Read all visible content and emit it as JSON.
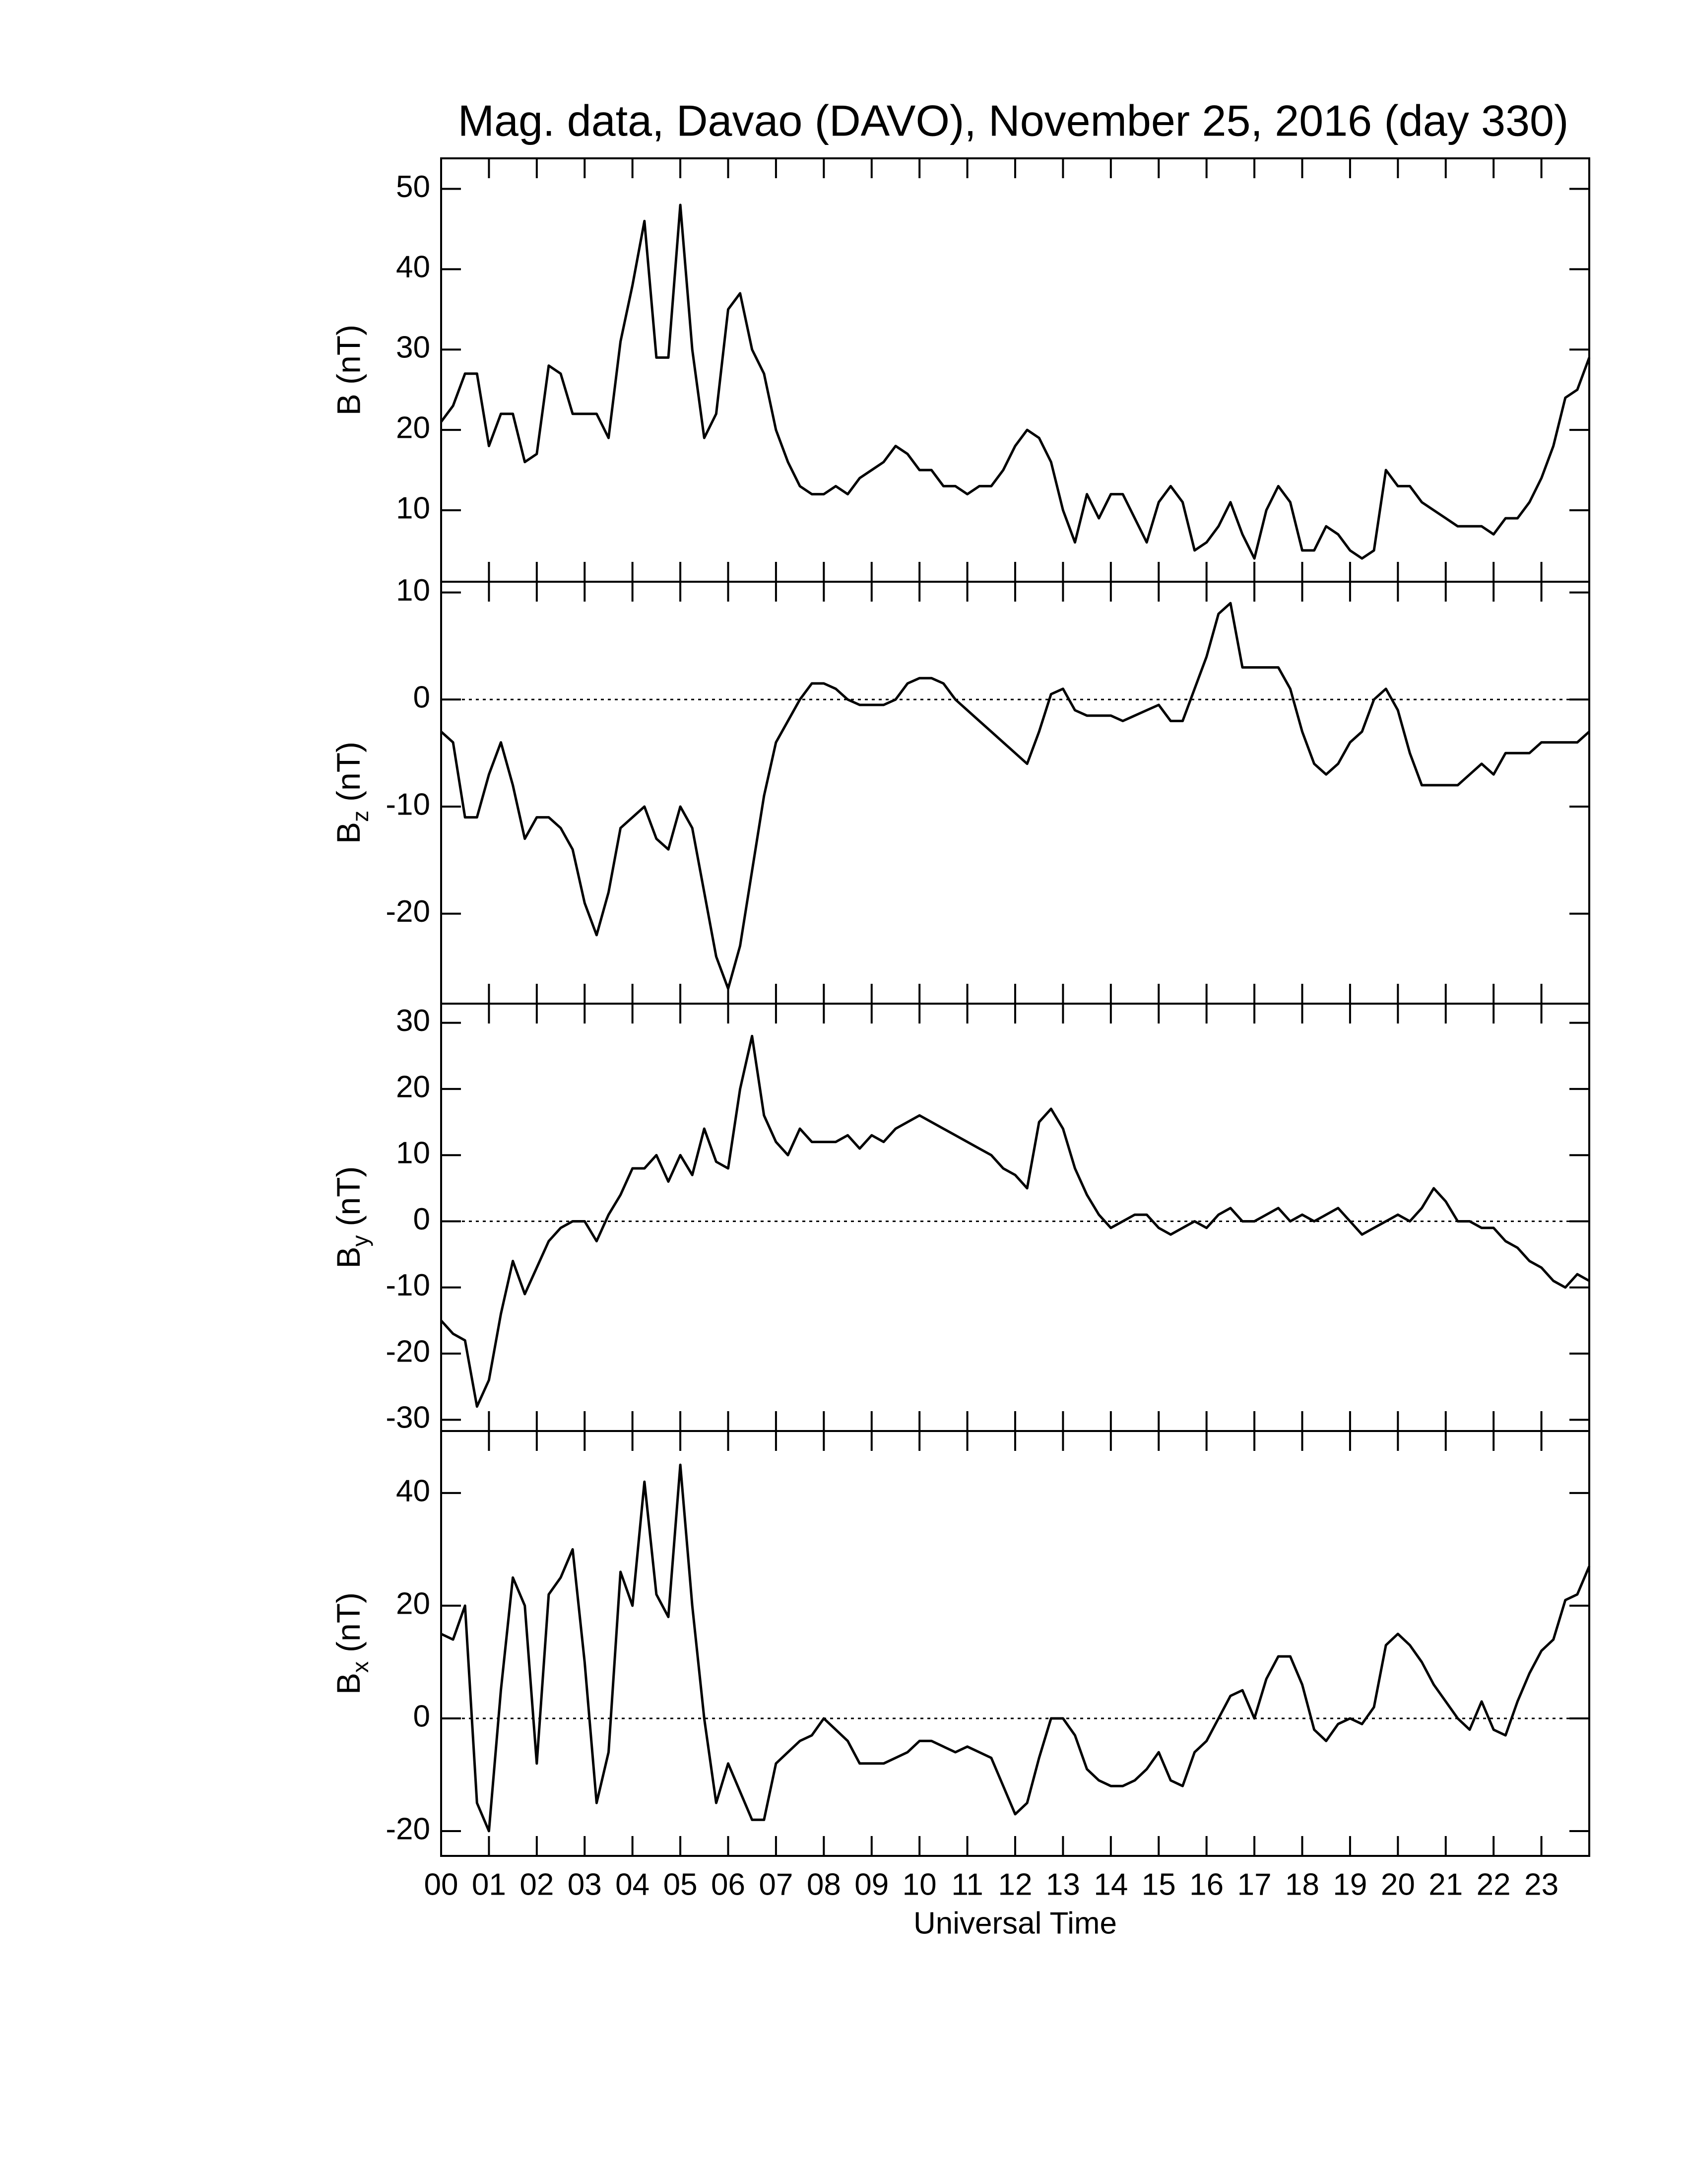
{
  "chart_data": [
    {
      "type": "line",
      "title": "Mag. data, Davao (DAVO), November 25, 2016 (day 330)",
      "y_label": "B (nT)",
      "color": "#000000",
      "xlim": [
        0,
        24
      ],
      "ylim": [
        1.1,
        53.8
      ],
      "yticks": [
        10,
        20,
        30,
        40,
        50
      ],
      "x": [
        0,
        0.25,
        0.5,
        0.75,
        1,
        1.25,
        1.5,
        1.75,
        2,
        2.25,
        2.5,
        2.75,
        3,
        3.25,
        3.5,
        3.75,
        4,
        4.25,
        4.5,
        4.75,
        5,
        5.25,
        5.5,
        5.75,
        6,
        6.25,
        6.5,
        6.75,
        7,
        7.25,
        7.5,
        7.75,
        8,
        8.25,
        8.5,
        8.75,
        9,
        9.25,
        9.5,
        9.75,
        10,
        10.25,
        10.5,
        10.75,
        11,
        11.25,
        11.5,
        11.75,
        12,
        12.25,
        12.5,
        12.75,
        13,
        13.25,
        13.5,
        13.75,
        14,
        14.25,
        14.5,
        14.75,
        15,
        15.25,
        15.5,
        15.75,
        16,
        16.25,
        16.5,
        16.75,
        17,
        17.25,
        17.5,
        17.75,
        18,
        18.25,
        18.5,
        18.75,
        19,
        19.25,
        19.5,
        19.75,
        20,
        20.25,
        20.5,
        20.75,
        21,
        21.25,
        21.5,
        21.75,
        22,
        22.25,
        22.5,
        22.75,
        23,
        23.25,
        23.5,
        23.75,
        24
      ],
      "values": [
        21,
        23,
        27,
        27,
        18,
        22,
        22,
        16,
        17,
        28,
        27,
        22,
        22,
        22,
        19,
        31,
        38,
        46,
        29,
        29,
        48,
        30,
        19,
        22,
        35,
        37,
        30,
        27,
        20,
        16,
        13,
        12,
        12,
        13,
        12,
        14,
        15,
        16,
        18,
        17,
        15,
        15,
        13,
        13,
        12,
        13,
        13,
        15,
        18,
        20,
        19,
        16,
        10,
        6,
        12,
        9,
        12,
        12,
        9,
        6,
        11,
        13,
        11,
        5,
        6,
        8,
        11,
        7,
        4,
        10,
        13,
        11,
        5,
        5,
        8,
        7,
        5,
        4,
        5,
        15,
        13,
        13,
        11,
        10,
        9,
        8,
        8,
        8,
        7,
        9,
        9,
        11,
        14,
        18,
        24,
        25,
        29
      ]
    },
    {
      "type": "line",
      "y_label": "B",
      "y_label_subscript": "z",
      "y_label_unit": "(nT)",
      "color": "#000000",
      "reference_line": 0,
      "xlim": [
        0,
        24
      ],
      "ylim": [
        -28.4,
        11
      ],
      "yticks": [
        -20,
        -10,
        0,
        10
      ],
      "x": [
        0,
        0.25,
        0.5,
        0.75,
        1,
        1.25,
        1.5,
        1.75,
        2,
        2.25,
        2.5,
        2.75,
        3,
        3.25,
        3.5,
        3.75,
        4,
        4.25,
        4.5,
        4.75,
        5,
        5.25,
        5.5,
        5.75,
        6,
        6.25,
        6.5,
        6.75,
        7,
        7.25,
        7.5,
        7.75,
        8,
        8.25,
        8.5,
        8.75,
        9,
        9.25,
        9.5,
        9.75,
        10,
        10.25,
        10.5,
        10.75,
        11,
        11.25,
        11.5,
        11.75,
        12,
        12.25,
        12.5,
        12.75,
        13,
        13.25,
        13.5,
        13.75,
        14,
        14.25,
        14.5,
        14.75,
        15,
        15.25,
        15.5,
        15.75,
        16,
        16.25,
        16.5,
        16.75,
        17,
        17.25,
        17.5,
        17.75,
        18,
        18.25,
        18.5,
        18.75,
        19,
        19.25,
        19.5,
        19.75,
        20,
        20.25,
        20.5,
        20.75,
        21,
        21.25,
        21.5,
        21.75,
        22,
        22.25,
        22.5,
        22.75,
        23,
        23.25,
        23.5,
        23.75,
        24
      ],
      "values": [
        -3,
        -4,
        -11,
        -11,
        -7,
        -4,
        -8,
        -13,
        -11,
        -11,
        -12,
        -14,
        -19,
        -22,
        -18,
        -12,
        -11,
        -10,
        -13,
        -14,
        -10,
        -12,
        -18,
        -24,
        -27,
        -23,
        -16,
        -9,
        -4,
        -2,
        0,
        1.5,
        1.5,
        1,
        0,
        -0.5,
        -0.5,
        -0.5,
        0,
        1.5,
        2,
        2,
        1.5,
        0,
        -1,
        -2,
        -3,
        -4,
        -5,
        -6,
        -3,
        0.5,
        1,
        -1,
        -1.5,
        -1.5,
        -1.5,
        -2,
        -1.5,
        -1,
        -0.5,
        -2,
        -2,
        1,
        4,
        8,
        9,
        3,
        3,
        3,
        3,
        1,
        -3,
        -6,
        -7,
        -6,
        -4,
        -3,
        0,
        1,
        -1,
        -5,
        -8,
        -8,
        -8,
        -8,
        -7,
        -6,
        -7,
        -5,
        -5,
        -5,
        -4,
        -4,
        -4,
        -4,
        -3
      ]
    },
    {
      "type": "line",
      "y_label": "B",
      "y_label_subscript": "y",
      "y_label_unit": "(nT)",
      "color": "#000000",
      "reference_line": 0,
      "xlim": [
        0,
        24
      ],
      "ylim": [
        -31.7,
        32.9
      ],
      "yticks": [
        -30,
        -20,
        -10,
        0,
        10,
        20,
        30
      ],
      "x": [
        0,
        0.25,
        0.5,
        0.75,
        1,
        1.25,
        1.5,
        1.75,
        2,
        2.25,
        2.5,
        2.75,
        3,
        3.25,
        3.5,
        3.75,
        4,
        4.25,
        4.5,
        4.75,
        5,
        5.25,
        5.5,
        5.75,
        6,
        6.25,
        6.5,
        6.75,
        7,
        7.25,
        7.5,
        7.75,
        8,
        8.25,
        8.5,
        8.75,
        9,
        9.25,
        9.5,
        9.75,
        10,
        10.25,
        10.5,
        10.75,
        11,
        11.25,
        11.5,
        11.75,
        12,
        12.25,
        12.5,
        12.75,
        13,
        13.25,
        13.5,
        13.75,
        14,
        14.25,
        14.5,
        14.75,
        15,
        15.25,
        15.5,
        15.75,
        16,
        16.25,
        16.5,
        16.75,
        17,
        17.25,
        17.5,
        17.75,
        18,
        18.25,
        18.5,
        18.75,
        19,
        19.25,
        19.5,
        19.75,
        20,
        20.25,
        20.5,
        20.75,
        21,
        21.25,
        21.5,
        21.75,
        22,
        22.25,
        22.5,
        22.75,
        23,
        23.25,
        23.5,
        23.75,
        24
      ],
      "values": [
        -15,
        -17,
        -18,
        -28,
        -24,
        -14,
        -6,
        -11,
        -7,
        -3,
        -1,
        0,
        0,
        -3,
        1,
        4,
        8,
        8,
        10,
        6,
        10,
        7,
        14,
        9,
        8,
        20,
        28,
        16,
        12,
        10,
        14,
        12,
        12,
        12,
        13,
        11,
        13,
        12,
        14,
        15,
        16,
        15,
        14,
        13,
        12,
        11,
        10,
        8,
        7,
        5,
        15,
        17,
        14,
        8,
        4,
        1,
        -1,
        0,
        1,
        1,
        -1,
        -2,
        -1,
        0,
        -1,
        1,
        2,
        0,
        0,
        1,
        2,
        0,
        1,
        0,
        1,
        2,
        0,
        -2,
        -1,
        0,
        1,
        0,
        2,
        5,
        3,
        0,
        0,
        -1,
        -1,
        -3,
        -4,
        -6,
        -7,
        -9,
        -10,
        -8,
        -9
      ]
    },
    {
      "type": "line",
      "y_label": "B",
      "y_label_subscript": "x",
      "y_label_unit": "(nT)",
      "x_label": "Universal Time",
      "color": "#000000",
      "reference_line": 0,
      "xlim": [
        0,
        24
      ],
      "ylim": [
        -24.4,
        51
      ],
      "yticks": [
        -20,
        0,
        20,
        40
      ],
      "xticks": [
        {
          "value": 0,
          "label": "00"
        },
        {
          "value": 1,
          "label": "01"
        },
        {
          "value": 2,
          "label": "02"
        },
        {
          "value": 3,
          "label": "03"
        },
        {
          "value": 4,
          "label": "04"
        },
        {
          "value": 5,
          "label": "05"
        },
        {
          "value": 6,
          "label": "06"
        },
        {
          "value": 7,
          "label": "07"
        },
        {
          "value": 8,
          "label": "08"
        },
        {
          "value": 9,
          "label": "09"
        },
        10,
        11,
        12,
        13,
        14,
        15,
        16,
        17,
        18,
        19,
        20,
        21,
        22,
        23
      ],
      "x": [
        0,
        0.25,
        0.5,
        0.75,
        1,
        1.25,
        1.5,
        1.75,
        2,
        2.25,
        2.5,
        2.75,
        3,
        3.25,
        3.5,
        3.75,
        4,
        4.25,
        4.5,
        4.75,
        5,
        5.25,
        5.5,
        5.75,
        6,
        6.25,
        6.5,
        6.75,
        7,
        7.25,
        7.5,
        7.75,
        8,
        8.25,
        8.5,
        8.75,
        9,
        9.25,
        9.5,
        9.75,
        10,
        10.25,
        10.5,
        10.75,
        11,
        11.25,
        11.5,
        11.75,
        12,
        12.25,
        12.5,
        12.75,
        13,
        13.25,
        13.5,
        13.75,
        14,
        14.25,
        14.5,
        14.75,
        15,
        15.25,
        15.5,
        15.75,
        16,
        16.25,
        16.5,
        16.75,
        17,
        17.25,
        17.5,
        17.75,
        18,
        18.25,
        18.5,
        18.75,
        19,
        19.25,
        19.5,
        19.75,
        20,
        20.25,
        20.5,
        20.75,
        21,
        21.25,
        21.5,
        21.75,
        22,
        22.25,
        22.5,
        22.75,
        23,
        23.25,
        23.5,
        23.75,
        24
      ],
      "values": [
        15,
        14,
        20,
        -15,
        -20,
        5,
        25,
        20,
        -8,
        22,
        25,
        30,
        10,
        -15,
        -6,
        26,
        20,
        42,
        22,
        18,
        45,
        20,
        0,
        -15,
        -8,
        -13,
        -18,
        -18,
        -8,
        -6,
        -4,
        -3,
        0,
        -2,
        -4,
        -8,
        -8,
        -8,
        -7,
        -6,
        -4,
        -4,
        -5,
        -6,
        -5,
        -6,
        -7,
        -12,
        -17,
        -15,
        -7,
        0,
        0,
        -3,
        -9,
        -11,
        -12,
        -12,
        -11,
        -9,
        -6,
        -11,
        -12,
        -6,
        -4,
        0,
        4,
        5,
        0,
        7,
        11,
        11,
        6,
        -2,
        -4,
        -1,
        0,
        -1,
        2,
        13,
        15,
        13,
        10,
        6,
        3,
        0,
        -2,
        3,
        -2,
        -3,
        3,
        8,
        12,
        14,
        21,
        22,
        27
      ]
    }
  ]
}
